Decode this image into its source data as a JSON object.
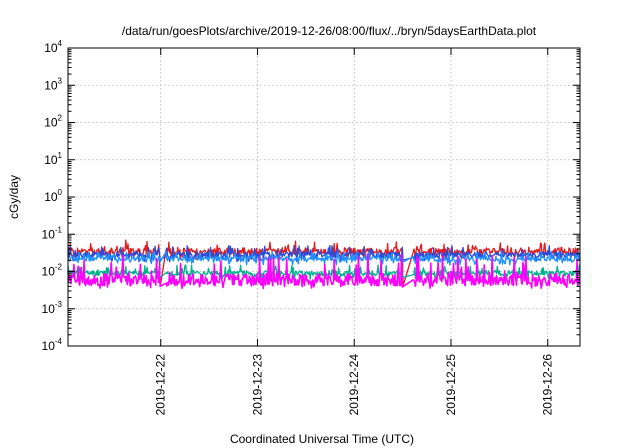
{
  "chart_data": {
    "type": "line",
    "title": "/data/run/goesPlots/archive/2019-12-26/08:00/flux/../bryn/5daysEarthData.plot",
    "xlabel": "Coordinated Universal Time (UTC)",
    "ylabel": "cGy/day",
    "yscale": "log",
    "ylim": [
      0.0001,
      10000
    ],
    "y_ticks": [
      {
        "base": "10",
        "exp": "-4",
        "value": 0.0001
      },
      {
        "base": "10",
        "exp": "-3",
        "value": 0.001
      },
      {
        "base": "10",
        "exp": "-2",
        "value": 0.01
      },
      {
        "base": "10",
        "exp": "-1",
        "value": 0.1
      },
      {
        "base": "10",
        "exp": "0",
        "value": 1
      },
      {
        "base": "10",
        "exp": "1",
        "value": 10
      },
      {
        "base": "10",
        "exp": "2",
        "value": 100
      },
      {
        "base": "10",
        "exp": "3",
        "value": 1000
      },
      {
        "base": "10",
        "exp": "4",
        "value": 10000
      }
    ],
    "xlim": [
      "2019-12-21T01:00",
      "2019-12-26T08:00"
    ],
    "x_ticks": [
      "2019-12-22",
      "2019-12-23",
      "2019-12-24",
      "2019-12-25",
      "2019-12-26"
    ],
    "grid": true,
    "legend": "none",
    "data_gap": [
      "2019-12-24T12:00",
      "2019-12-24T14:30"
    ],
    "series": [
      {
        "color": "#e41a1c",
        "typical_value": 0.035,
        "range": [
          0.02,
          0.07
        ],
        "low_level_after_gap": 0.004
      },
      {
        "color": "#2b4bd8",
        "typical_value": 0.028,
        "range": [
          0.018,
          0.05
        ],
        "low_level_after_gap": 0.02
      },
      {
        "color": "#1e90ff",
        "typical_value": 0.022,
        "range": [
          0.015,
          0.035
        ],
        "low_level_after_gap": 0.018
      },
      {
        "color": "#00b38c",
        "typical_value": 0.009,
        "range": [
          0.006,
          0.015
        ],
        "low_level_after_gap": 0.007
      },
      {
        "color": "#ff00ff",
        "typical_value": 0.006,
        "range": [
          0.0035,
          0.03
        ],
        "low_level_after_gap": 0.004
      }
    ]
  }
}
